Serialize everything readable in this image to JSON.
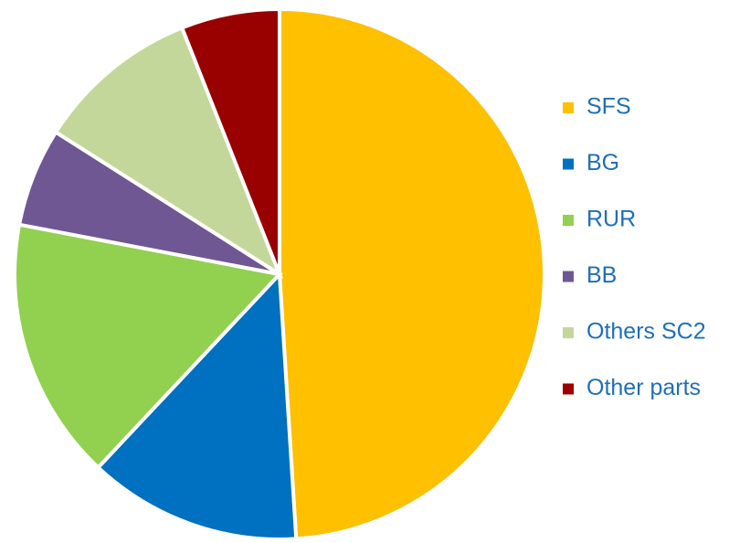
{
  "chart_data": {
    "type": "pie",
    "categories": [
      "SFS",
      "BG",
      "RUR",
      "BB",
      "Others SC2",
      "Other parts"
    ],
    "values": [
      49,
      13,
      16,
      6,
      10,
      6
    ],
    "colors": [
      "#ffc000",
      "#0070c0",
      "#92d050",
      "#6f5793",
      "#c4d79b",
      "#990000"
    ],
    "legend": "right"
  }
}
